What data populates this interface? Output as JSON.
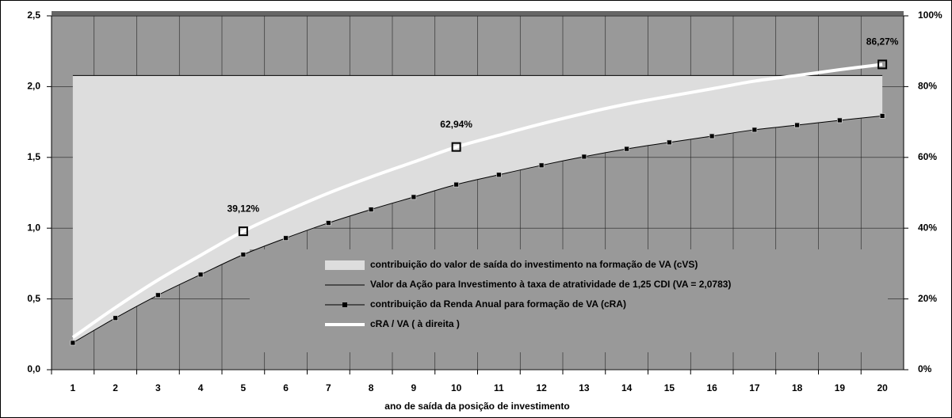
{
  "chart_data": {
    "type": "line",
    "x_label": "ano de saída da posição de investimento",
    "categories": [
      "1",
      "2",
      "3",
      "4",
      "5",
      "6",
      "7",
      "8",
      "9",
      "10",
      "11",
      "12",
      "13",
      "14",
      "15",
      "16",
      "17",
      "18",
      "19",
      "20"
    ],
    "series": [
      {
        "name": "contribuição do valor de saída do investimento na formação de VA (cVS)",
        "type": "area",
        "stacked_on": 2,
        "color": "#dddddd",
        "values": [
          1.8883,
          1.7133,
          1.5513,
          1.4063,
          1.2653,
          1.1483,
          1.0413,
          0.9463,
          0.8583,
          0.7703,
          0.7013,
          0.6343,
          0.5733,
          0.5183,
          0.4723,
          0.4283,
          0.3833,
          0.3503,
          0.3163,
          0.2853
        ]
      },
      {
        "name": "Valor da Ação para Investimento à taxa de atratividade de 1,25 CDI (VA = 2,0783)",
        "type": "line",
        "color": "#000000",
        "width": 1,
        "values": [
          2.0783,
          2.0783,
          2.0783,
          2.0783,
          2.0783,
          2.0783,
          2.0783,
          2.0783,
          2.0783,
          2.0783,
          2.0783,
          2.0783,
          2.0783,
          2.0783,
          2.0783,
          2.0783,
          2.0783,
          2.0783,
          2.0783,
          2.0783
        ]
      },
      {
        "name": "contribuição da Renda Anual para formação de VA (cRA)",
        "type": "line",
        "color": "#000000",
        "width": 1,
        "markers": true,
        "values": [
          0.19,
          0.365,
          0.527,
          0.672,
          0.813,
          0.93,
          1.037,
          1.132,
          1.22,
          1.308,
          1.377,
          1.444,
          1.505,
          1.56,
          1.606,
          1.65,
          1.695,
          1.728,
          1.762,
          1.793
        ]
      },
      {
        "name": "cRA / VA ( à direita )",
        "type": "line",
        "color": "#ffffff",
        "width": 4,
        "axis": "y2",
        "values": [
          9.14,
          17.56,
          25.36,
          32.33,
          39.12,
          44.75,
          49.9,
          54.47,
          58.7,
          62.94,
          66.26,
          69.48,
          72.42,
          75.06,
          77.27,
          79.39,
          81.56,
          83.15,
          84.78,
          86.27
        ],
        "value_labels": [
          null,
          null,
          null,
          null,
          "39,12%",
          null,
          null,
          null,
          null,
          "62,94%",
          null,
          null,
          null,
          null,
          null,
          null,
          null,
          null,
          null,
          "86,27%"
        ]
      }
    ],
    "ylim": [
      0,
      2.5
    ],
    "yticks": [
      {
        "value": 0,
        "label": "0,0"
      },
      {
        "value": 0.5,
        "label": "0,5"
      },
      {
        "value": 1,
        "label": "1,0"
      },
      {
        "value": 1.5,
        "label": "1,5"
      },
      {
        "value": 2,
        "label": "2,0"
      },
      {
        "value": 2.5,
        "label": "2,5"
      }
    ],
    "y2lim": [
      0,
      100
    ],
    "y2ticks": [
      {
        "value": 0,
        "label": "0%"
      },
      {
        "value": 20,
        "label": "20%"
      },
      {
        "value": 40,
        "label": "40%"
      },
      {
        "value": 60,
        "label": "60%"
      },
      {
        "value": 80,
        "label": "80%"
      },
      {
        "value": 100,
        "label": "100%"
      }
    ],
    "grid": true,
    "legend": "lower right",
    "plot_color": "#999999"
  }
}
